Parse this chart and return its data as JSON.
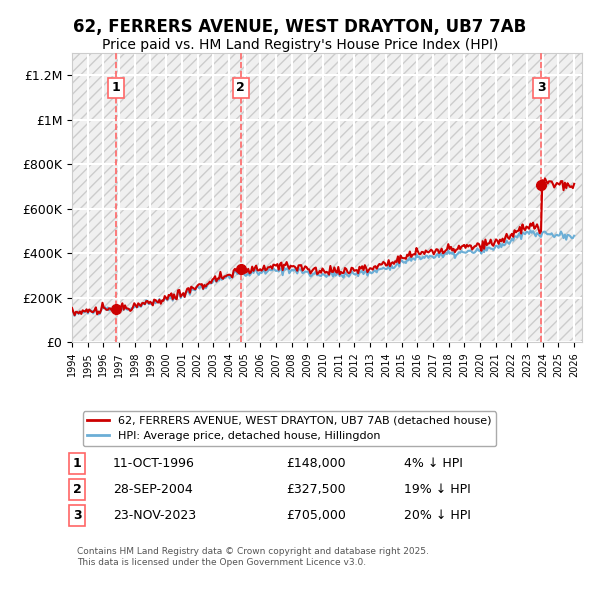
{
  "title": "62, FERRERS AVENUE, WEST DRAYTON, UB7 7AB",
  "subtitle": "Price paid vs. HM Land Registry's House Price Index (HPI)",
  "ylabel": "",
  "ylim": [
    0,
    1300000
  ],
  "yticks": [
    0,
    200000,
    400000,
    600000,
    800000,
    1000000,
    1200000
  ],
  "ytick_labels": [
    "£0",
    "£200K",
    "£400K",
    "£600K",
    "£800K",
    "£1M",
    "£1.2M"
  ],
  "xlim_start": 1994.0,
  "xlim_end": 2026.5,
  "legend_line1": "62, FERRERS AVENUE, WEST DRAYTON, UB7 7AB (detached house)",
  "legend_line2": "HPI: Average price, detached house, Hillingdon",
  "transaction1_label": "1",
  "transaction1_date": "11-OCT-1996",
  "transaction1_price": "£148,000",
  "transaction1_hpi": "4% ↓ HPI",
  "transaction1_year": 1996.79,
  "transaction1_value": 148000,
  "transaction2_label": "2",
  "transaction2_date": "28-SEP-2004",
  "transaction2_price": "£327,500",
  "transaction2_hpi": "19% ↓ HPI",
  "transaction2_year": 2004.75,
  "transaction2_value": 327500,
  "transaction3_label": "3",
  "transaction3_date": "23-NOV-2023",
  "transaction3_price": "£705,000",
  "transaction3_hpi": "20% ↓ HPI",
  "transaction3_year": 2023.9,
  "transaction3_value": 705000,
  "hpi_color": "#6baed6",
  "price_color": "#cc0000",
  "vline_color": "#ff6666",
  "marker_color": "#cc0000",
  "background_hatch_color": "#e8e8e8",
  "footer_text": "Contains HM Land Registry data © Crown copyright and database right 2025.\nThis data is licensed under the Open Government Licence v3.0.",
  "title_fontsize": 12,
  "subtitle_fontsize": 10
}
